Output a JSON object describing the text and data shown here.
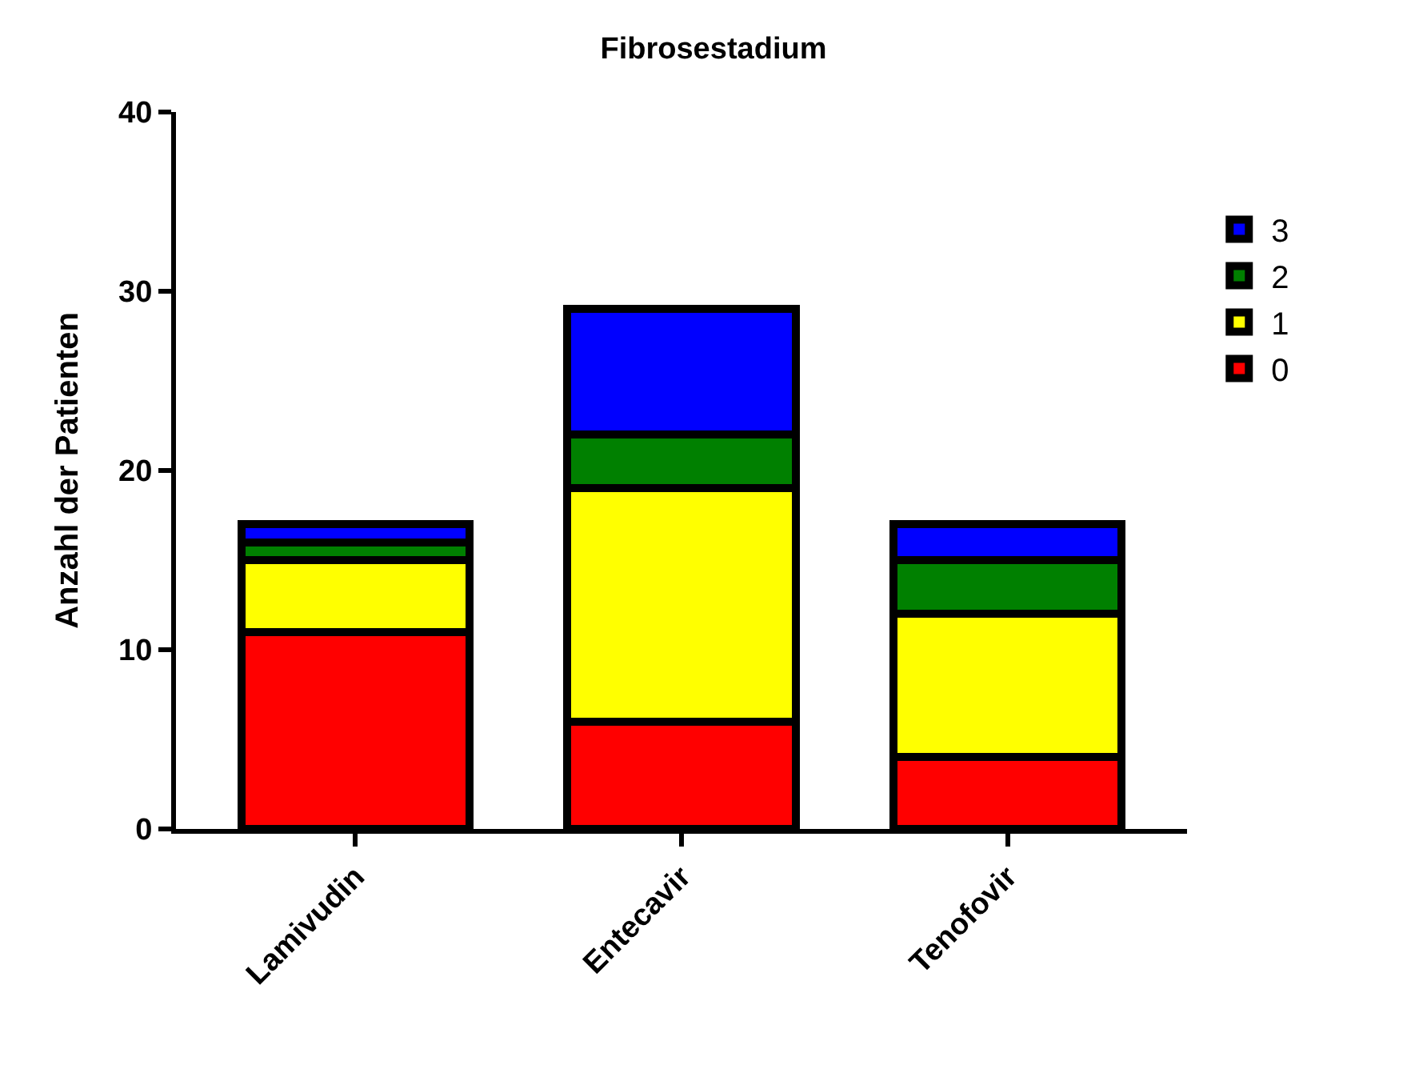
{
  "chart_data": {
    "type": "bar",
    "title": "Fibrosestadium",
    "ylabel": "Anzahl der Patienten",
    "categories": [
      "Lamivudin",
      "Entecavir",
      "Tenofovir"
    ],
    "stacked": true,
    "ylim": [
      0,
      40
    ],
    "yticks": [
      0,
      10,
      20,
      30,
      40
    ],
    "grid": false,
    "legend": "right",
    "series": [
      {
        "name": "0",
        "color": "#ff0000",
        "values": [
          11,
          6,
          4
        ]
      },
      {
        "name": "1",
        "color": "#ffff00",
        "values": [
          4,
          13,
          8
        ]
      },
      {
        "name": "2",
        "color": "#008000",
        "values": [
          1,
          3,
          3
        ]
      },
      {
        "name": "3",
        "color": "#0000ff",
        "values": [
          1,
          7,
          2
        ]
      }
    ]
  }
}
